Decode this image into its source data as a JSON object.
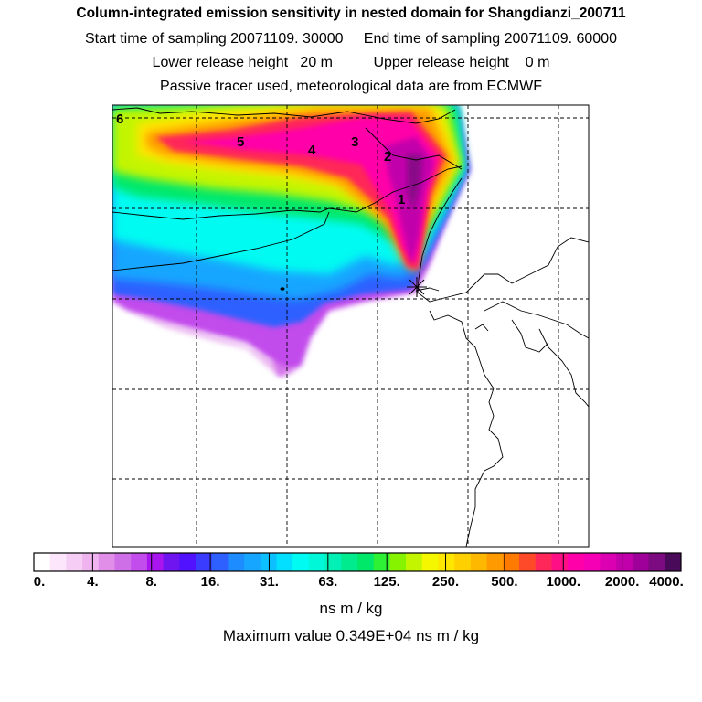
{
  "header": {
    "title": "Column-integrated emission sensitivity in nested domain for Shangdianzi_200711",
    "line1": "Start time of sampling 20071109. 30000     End time of sampling 20071109. 60000",
    "line2": "Lower release height   20 m          Upper release height    0 m",
    "line3": "Passive tracer used, meteorological data are from ECMWF"
  },
  "chart_data": {
    "type": "heatmap",
    "title": "Column-integrated emission sensitivity in nested domain for Shangdianzi_200711",
    "colorbar": {
      "tick_labels": [
        "0.",
        "4.",
        "8.",
        "16.",
        "31.",
        "63.",
        "125.",
        "250.",
        "500.",
        "1000.",
        "2000.",
        "4000."
      ],
      "colors": [
        "#ffffff",
        "#fbe6fb",
        "#f5cdf5",
        "#efb4ef",
        "#e08ee8",
        "#cf6fe8",
        "#c24cec",
        "#a915ee",
        "#6f15f0",
        "#5012ff",
        "#3a3cff",
        "#2e60ff",
        "#1d8cff",
        "#16a6ff",
        "#0cc0ff",
        "#02dfff",
        "#00fbf2",
        "#00f7d8",
        "#00f0b5",
        "#00ea8e",
        "#00e86a",
        "#2ef035",
        "#86f300",
        "#c4f500",
        "#f4f700",
        "#ffe600",
        "#ffd000",
        "#ffb800",
        "#ff9a00",
        "#ff7a00",
        "#ff4a2a",
        "#ff2659",
        "#ff0f86",
        "#ff00a9",
        "#f500b5",
        "#dc00b3",
        "#c200ab",
        "#a0009a",
        "#7c0a80",
        "#4a0a5a"
      ],
      "units": "ns m / kg"
    },
    "maximum_label": "Maximum value  0.349E+04 ns m / kg",
    "trajectory_labels": [
      "1",
      "2",
      "3",
      "4",
      "5",
      "6"
    ],
    "receptor": "Shangdianzi"
  }
}
